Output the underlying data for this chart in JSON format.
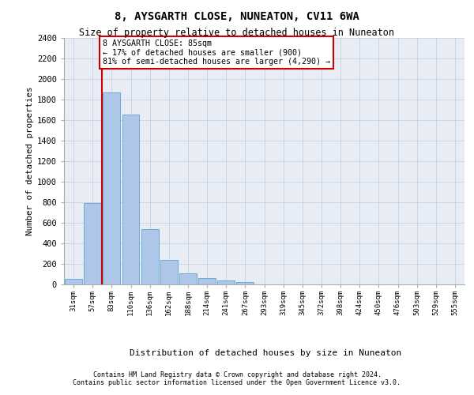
{
  "title1": "8, AYSGARTH CLOSE, NUNEATON, CV11 6WA",
  "title2": "Size of property relative to detached houses in Nuneaton",
  "xlabel": "Distribution of detached houses by size in Nuneaton",
  "ylabel": "Number of detached properties",
  "categories": [
    "31sqm",
    "57sqm",
    "83sqm",
    "110sqm",
    "136sqm",
    "162sqm",
    "188sqm",
    "214sqm",
    "241sqm",
    "267sqm",
    "293sqm",
    "319sqm",
    "345sqm",
    "372sqm",
    "398sqm",
    "424sqm",
    "450sqm",
    "476sqm",
    "503sqm",
    "529sqm",
    "555sqm"
  ],
  "values": [
    55,
    790,
    1870,
    1650,
    535,
    240,
    110,
    60,
    35,
    20,
    0,
    0,
    0,
    0,
    0,
    0,
    0,
    0,
    0,
    0,
    0
  ],
  "bar_color": "#aec6e8",
  "bar_edge_color": "#6aaad4",
  "vline_color": "#cc0000",
  "vline_x": 1.5,
  "annotation_text": "8 AYSGARTH CLOSE: 85sqm\n← 17% of detached houses are smaller (900)\n81% of semi-detached houses are larger (4,290) →",
  "annotation_box_facecolor": "#ffffff",
  "annotation_box_edgecolor": "#cc0000",
  "ylim_max": 2400,
  "yticks": [
    0,
    200,
    400,
    600,
    800,
    1000,
    1200,
    1400,
    1600,
    1800,
    2000,
    2200,
    2400
  ],
  "grid_color": "#cdd5e5",
  "ax_facecolor": "#e8edf5",
  "footer1": "Contains HM Land Registry data © Crown copyright and database right 2024.",
  "footer2": "Contains public sector information licensed under the Open Government Licence v3.0."
}
